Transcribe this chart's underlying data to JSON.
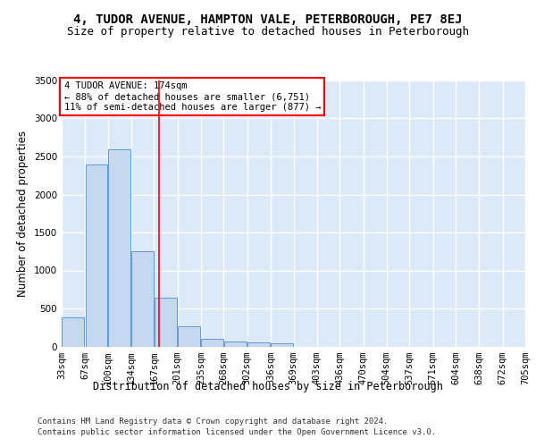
{
  "title1": "4, TUDOR AVENUE, HAMPTON VALE, PETERBOROUGH, PE7 8EJ",
  "title2": "Size of property relative to detached houses in Peterborough",
  "xlabel": "Distribution of detached houses by size in Peterborough",
  "ylabel": "Number of detached properties",
  "footnote1": "Contains HM Land Registry data © Crown copyright and database right 2024.",
  "footnote2": "Contains public sector information licensed under the Open Government Licence v3.0.",
  "annotation_line1": "4 TUDOR AVENUE: 174sqm",
  "annotation_line2": "← 88% of detached houses are smaller (6,751)",
  "annotation_line3": "11% of semi-detached houses are larger (877) →",
  "property_size": 174,
  "bar_left_edges": [
    33,
    67,
    100,
    134,
    167,
    201,
    235,
    268,
    302,
    336,
    369,
    403,
    436,
    470,
    504,
    537,
    571,
    604,
    638,
    672
  ],
  "bar_heights": [
    380,
    2390,
    2590,
    1250,
    640,
    260,
    95,
    60,
    55,
    45,
    0,
    0,
    0,
    0,
    0,
    0,
    0,
    0,
    0,
    0
  ],
  "bin_width": 33,
  "bar_color": "#c5d8f0",
  "bar_edge_color": "#5b9bd5",
  "red_line_x": 174,
  "ylim": [
    0,
    3500
  ],
  "yticks": [
    0,
    500,
    1000,
    1500,
    2000,
    2500,
    3000,
    3500
  ],
  "tick_labels": [
    "33sqm",
    "67sqm",
    "100sqm",
    "134sqm",
    "167sqm",
    "201sqm",
    "235sqm",
    "268sqm",
    "302sqm",
    "336sqm",
    "369sqm",
    "403sqm",
    "436sqm",
    "470sqm",
    "504sqm",
    "537sqm",
    "571sqm",
    "604sqm",
    "638sqm",
    "672sqm",
    "705sqm"
  ],
  "bg_color": "#dce9f8",
  "annotation_box_color": "#ff0000",
  "title_fontsize": 10,
  "subtitle_fontsize": 9,
  "axis_label_fontsize": 8.5,
  "tick_fontsize": 7.5,
  "footnote_fontsize": 6.5
}
